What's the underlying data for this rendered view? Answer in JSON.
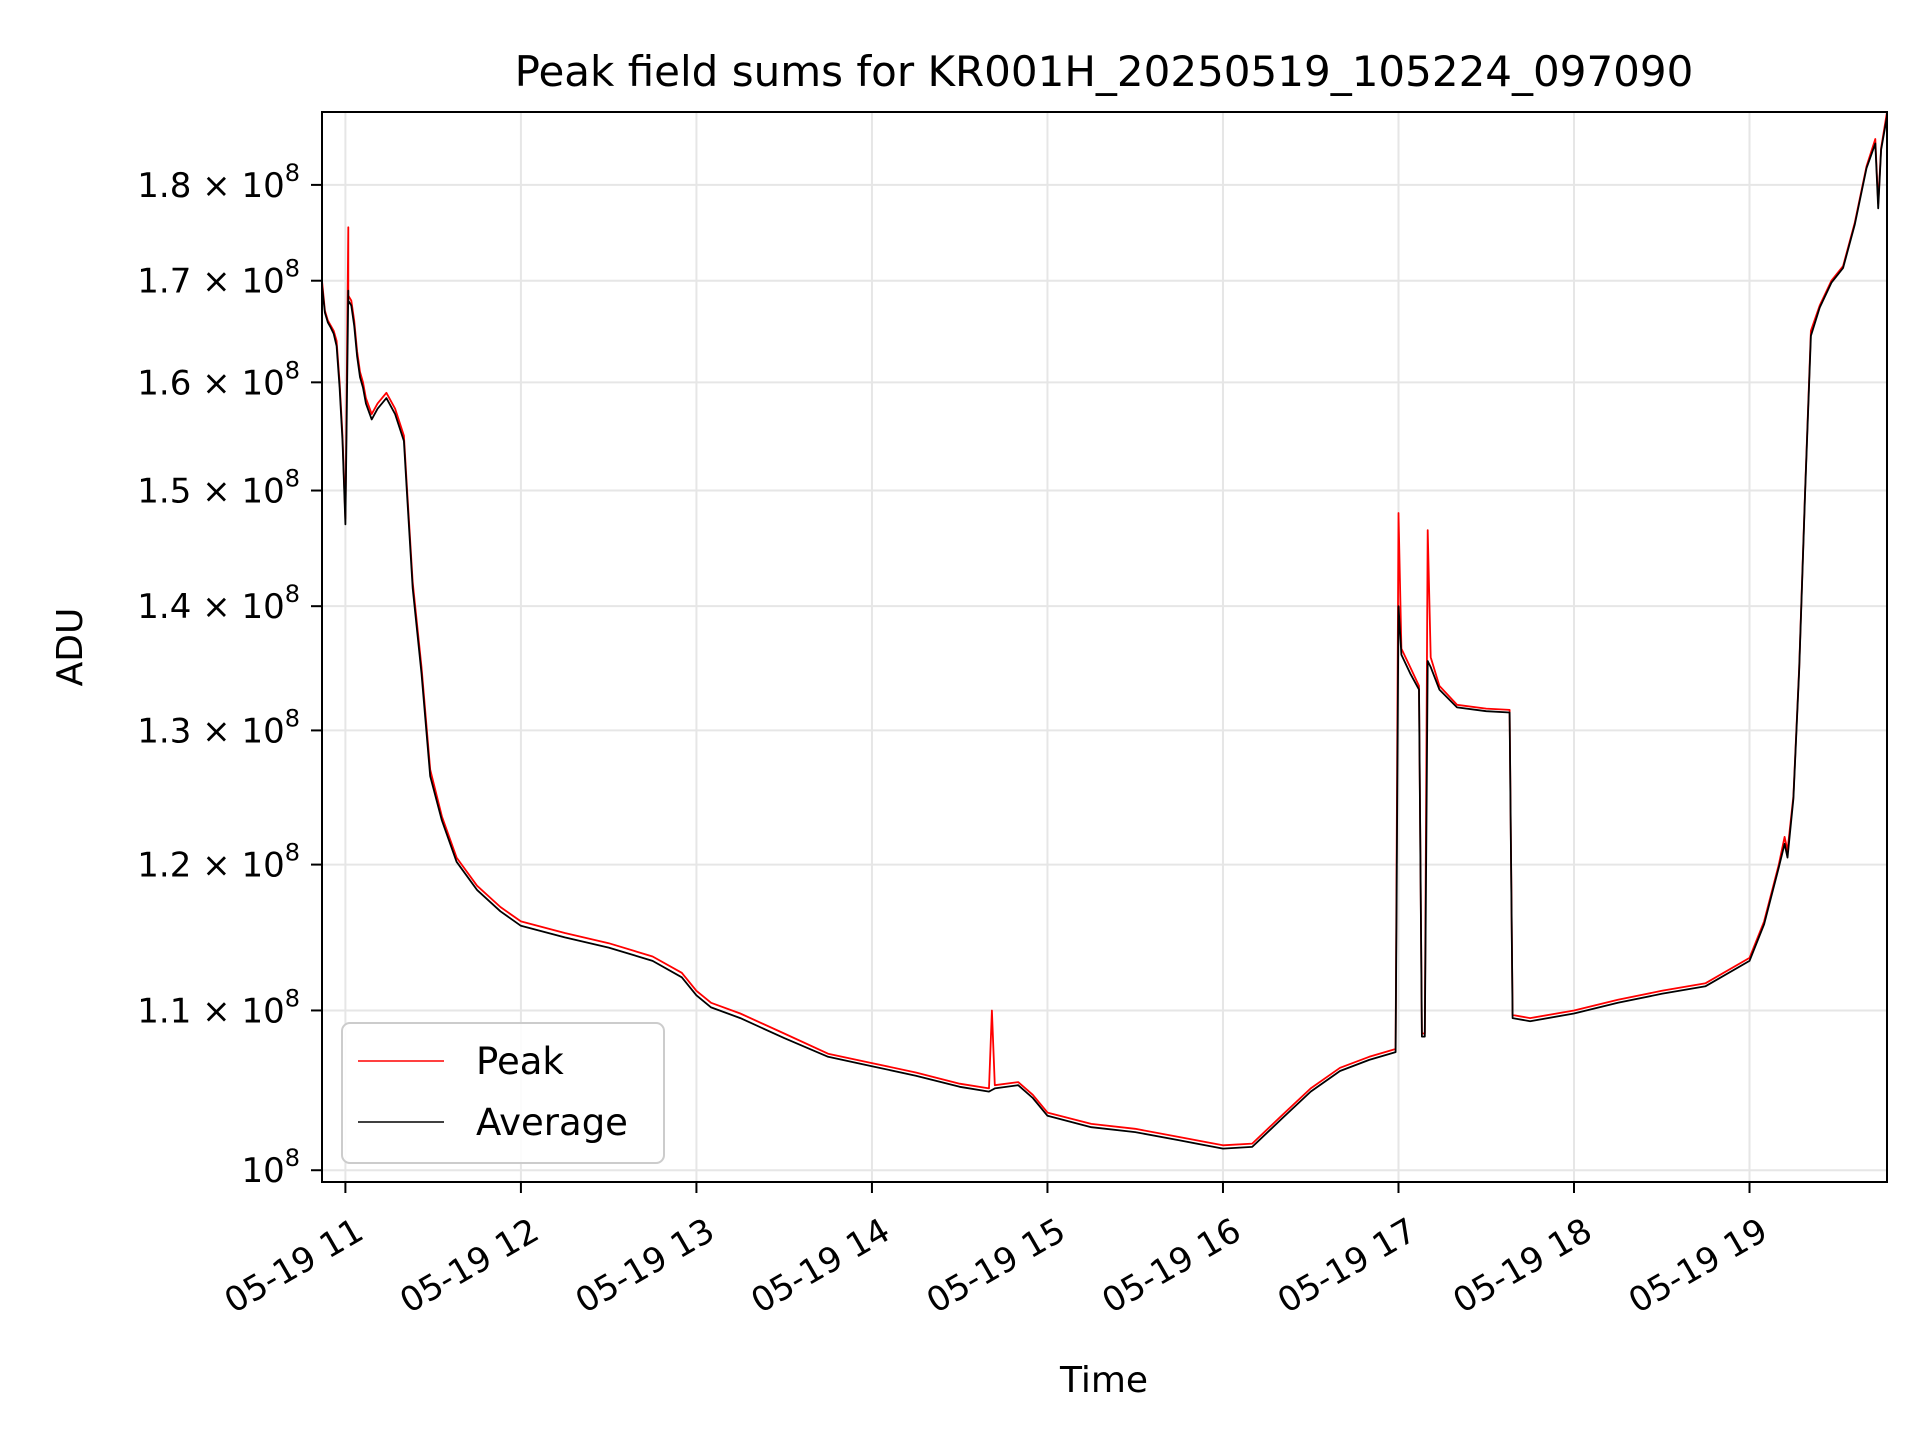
{
  "chart_data": {
    "type": "line",
    "title": "Peak field sums for KR001H_20250519_105224_097090",
    "xlabel": "Time",
    "ylabel": "ADU",
    "y_scale": "log",
    "grid": true,
    "legend_position": "lower-left",
    "xlim": [
      "2025-05-19 10:52",
      "2025-05-19 19:47"
    ],
    "ylim": [
      99300000,
      188000000
    ],
    "x_ticks": [
      {
        "value": "2025-05-19 11:00",
        "label": "05-19 11"
      },
      {
        "value": "2025-05-19 12:00",
        "label": "05-19 12"
      },
      {
        "value": "2025-05-19 13:00",
        "label": "05-19 13"
      },
      {
        "value": "2025-05-19 14:00",
        "label": "05-19 14"
      },
      {
        "value": "2025-05-19 15:00",
        "label": "05-19 15"
      },
      {
        "value": "2025-05-19 16:00",
        "label": "05-19 16"
      },
      {
        "value": "2025-05-19 17:00",
        "label": "05-19 17"
      },
      {
        "value": "2025-05-19 18:00",
        "label": "05-19 18"
      },
      {
        "value": "2025-05-19 19:00",
        "label": "05-19 19"
      }
    ],
    "y_ticks": [
      {
        "value": 100000000,
        "mant": "",
        "exp": "8"
      },
      {
        "value": 110000000,
        "mant": "1.1",
        "exp": "8"
      },
      {
        "value": 120000000,
        "mant": "1.2",
        "exp": "8"
      },
      {
        "value": 130000000,
        "mant": "1.3",
        "exp": "8"
      },
      {
        "value": 140000000,
        "mant": "1.4",
        "exp": "8"
      },
      {
        "value": 150000000,
        "mant": "1.5",
        "exp": "8"
      },
      {
        "value": 160000000,
        "mant": "1.6",
        "exp": "8"
      },
      {
        "value": 170000000,
        "mant": "1.7",
        "exp": "8"
      },
      {
        "value": 180000000,
        "mant": "1.8",
        "exp": "8"
      }
    ],
    "series": [
      {
        "name": "Peak",
        "color": "#ff0000",
        "points": [
          [
            "2025-05-19 10:52",
            170000000
          ],
          [
            "2025-05-19 10:53",
            167000000
          ],
          [
            "2025-05-19 10:54",
            166000000
          ],
          [
            "2025-05-19 10:55",
            165500000
          ],
          [
            "2025-05-19 10:56",
            165000000
          ],
          [
            "2025-05-19 10:57",
            164000000
          ],
          [
            "2025-05-19 10:58",
            160000000
          ],
          [
            "2025-05-19 10:59",
            155000000
          ],
          [
            "2025-05-19 11:00",
            147500000
          ],
          [
            "2025-05-19 11:01",
            175500000
          ],
          [
            "2025-05-19 11:01",
            168500000
          ],
          [
            "2025-05-19 11:02",
            168000000
          ],
          [
            "2025-05-19 11:03",
            166000000
          ],
          [
            "2025-05-19 11:04",
            163000000
          ],
          [
            "2025-05-19 11:05",
            161000000
          ],
          [
            "2025-05-19 11:06",
            160000000
          ],
          [
            "2025-05-19 11:07",
            158500000
          ],
          [
            "2025-05-19 11:09",
            157000000
          ],
          [
            "2025-05-19 11:11",
            158000000
          ],
          [
            "2025-05-19 11:14",
            159000000
          ],
          [
            "2025-05-19 11:17",
            157500000
          ],
          [
            "2025-05-19 11:20",
            155000000
          ],
          [
            "2025-05-19 11:21",
            150500000
          ],
          [
            "2025-05-19 11:23",
            142000000
          ],
          [
            "2025-05-19 11:26",
            135000000
          ],
          [
            "2025-05-19 11:29",
            127000000
          ],
          [
            "2025-05-19 11:33",
            123500000
          ],
          [
            "2025-05-19 11:38",
            120500000
          ],
          [
            "2025-05-19 11:45",
            118500000
          ],
          [
            "2025-05-19 11:53",
            117000000
          ],
          [
            "2025-05-19 12:00",
            116000000
          ],
          [
            "2025-05-19 12:15",
            115200000
          ],
          [
            "2025-05-19 12:30",
            114500000
          ],
          [
            "2025-05-19 12:45",
            113600000
          ],
          [
            "2025-05-19 12:55",
            112500000
          ],
          [
            "2025-05-19 13:00",
            111300000
          ],
          [
            "2025-05-19 13:05",
            110500000
          ],
          [
            "2025-05-19 13:15",
            109800000
          ],
          [
            "2025-05-19 13:30",
            108500000
          ],
          [
            "2025-05-19 13:45",
            107200000
          ],
          [
            "2025-05-19 14:00",
            106600000
          ],
          [
            "2025-05-19 14:15",
            106000000
          ],
          [
            "2025-05-19 14:30",
            105300000
          ],
          [
            "2025-05-19 14:40",
            105000000
          ],
          [
            "2025-05-19 14:41",
            110000000
          ],
          [
            "2025-05-19 14:42",
            105200000
          ],
          [
            "2025-05-19 14:50",
            105400000
          ],
          [
            "2025-05-19 14:55",
            104600000
          ],
          [
            "2025-05-19 15:00",
            103500000
          ],
          [
            "2025-05-19 15:15",
            102800000
          ],
          [
            "2025-05-19 15:30",
            102500000
          ],
          [
            "2025-05-19 15:45",
            102000000
          ],
          [
            "2025-05-19 16:00",
            101500000
          ],
          [
            "2025-05-19 16:10",
            101600000
          ],
          [
            "2025-05-19 16:20",
            103300000
          ],
          [
            "2025-05-19 16:30",
            105000000
          ],
          [
            "2025-05-19 16:40",
            106300000
          ],
          [
            "2025-05-19 16:50",
            107000000
          ],
          [
            "2025-05-19 16:59",
            107500000
          ],
          [
            "2025-05-19 17:00",
            148000000
          ],
          [
            "2025-05-19 17:01",
            136500000
          ],
          [
            "2025-05-19 17:04",
            135000000
          ],
          [
            "2025-05-19 17:07",
            133500000
          ],
          [
            "2025-05-19 17:08",
            108500000
          ],
          [
            "2025-05-19 17:09",
            108500000
          ],
          [
            "2025-05-19 17:10",
            146500000
          ],
          [
            "2025-05-19 17:11",
            135800000
          ],
          [
            "2025-05-19 17:14",
            133500000
          ],
          [
            "2025-05-19 17:20",
            132000000
          ],
          [
            "2025-05-19 17:30",
            131700000
          ],
          [
            "2025-05-19 17:38",
            131600000
          ],
          [
            "2025-05-19 17:39",
            109700000
          ],
          [
            "2025-05-19 17:45",
            109500000
          ],
          [
            "2025-05-19 18:00",
            110000000
          ],
          [
            "2025-05-19 18:15",
            110700000
          ],
          [
            "2025-05-19 18:30",
            111300000
          ],
          [
            "2025-05-19 18:45",
            111800000
          ],
          [
            "2025-05-19 19:00",
            113500000
          ],
          [
            "2025-05-19 19:05",
            116000000
          ],
          [
            "2025-05-19 19:10",
            120000000
          ],
          [
            "2025-05-19 19:12",
            122000000
          ],
          [
            "2025-05-19 19:13",
            121000000
          ],
          [
            "2025-05-19 19:15",
            125000000
          ],
          [
            "2025-05-19 19:17",
            135000000
          ],
          [
            "2025-05-19 19:19",
            150000000
          ],
          [
            "2025-05-19 19:21",
            165000000
          ],
          [
            "2025-05-19 19:24",
            167500000
          ],
          [
            "2025-05-19 19:28",
            170000000
          ],
          [
            "2025-05-19 19:32",
            171500000
          ],
          [
            "2025-05-19 19:36",
            176000000
          ],
          [
            "2025-05-19 19:40",
            182000000
          ],
          [
            "2025-05-19 19:43",
            185000000
          ],
          [
            "2025-05-19 19:44",
            178000000
          ],
          [
            "2025-05-19 19:45",
            184000000
          ],
          [
            "2025-05-19 19:47",
            188000000
          ]
        ]
      },
      {
        "name": "Average",
        "color": "#000000",
        "points": [
          [
            "2025-05-19 10:52",
            169500000
          ],
          [
            "2025-05-19 10:53",
            166800000
          ],
          [
            "2025-05-19 10:54",
            165800000
          ],
          [
            "2025-05-19 10:55",
            165300000
          ],
          [
            "2025-05-19 10:56",
            164700000
          ],
          [
            "2025-05-19 10:57",
            163500000
          ],
          [
            "2025-05-19 10:58",
            159500000
          ],
          [
            "2025-05-19 10:59",
            154500000
          ],
          [
            "2025-05-19 11:00",
            147000000
          ],
          [
            "2025-05-19 11:01",
            169000000
          ],
          [
            "2025-05-19 11:01",
            168000000
          ],
          [
            "2025-05-19 11:02",
            167500000
          ],
          [
            "2025-05-19 11:03",
            165500000
          ],
          [
            "2025-05-19 11:04",
            162500000
          ],
          [
            "2025-05-19 11:05",
            160500000
          ],
          [
            "2025-05-19 11:06",
            159500000
          ],
          [
            "2025-05-19 11:07",
            158000000
          ],
          [
            "2025-05-19 11:09",
            156500000
          ],
          [
            "2025-05-19 11:11",
            157500000
          ],
          [
            "2025-05-19 11:14",
            158500000
          ],
          [
            "2025-05-19 11:17",
            157000000
          ],
          [
            "2025-05-19 11:20",
            154500000
          ],
          [
            "2025-05-19 11:21",
            150000000
          ],
          [
            "2025-05-19 11:23",
            141500000
          ],
          [
            "2025-05-19 11:26",
            134500000
          ],
          [
            "2025-05-19 11:29",
            126500000
          ],
          [
            "2025-05-19 11:33",
            123200000
          ],
          [
            "2025-05-19 11:38",
            120200000
          ],
          [
            "2025-05-19 11:45",
            118200000
          ],
          [
            "2025-05-19 11:53",
            116700000
          ],
          [
            "2025-05-19 12:00",
            115700000
          ],
          [
            "2025-05-19 12:15",
            114900000
          ],
          [
            "2025-05-19 12:30",
            114200000
          ],
          [
            "2025-05-19 12:45",
            113300000
          ],
          [
            "2025-05-19 12:55",
            112200000
          ],
          [
            "2025-05-19 13:00",
            111000000
          ],
          [
            "2025-05-19 13:05",
            110200000
          ],
          [
            "2025-05-19 13:15",
            109500000
          ],
          [
            "2025-05-19 13:30",
            108200000
          ],
          [
            "2025-05-19 13:45",
            107000000
          ],
          [
            "2025-05-19 14:00",
            106400000
          ],
          [
            "2025-05-19 14:15",
            105800000
          ],
          [
            "2025-05-19 14:30",
            105100000
          ],
          [
            "2025-05-19 14:40",
            104800000
          ],
          [
            "2025-05-19 14:41",
            104900000
          ],
          [
            "2025-05-19 14:42",
            105000000
          ],
          [
            "2025-05-19 14:50",
            105200000
          ],
          [
            "2025-05-19 14:55",
            104400000
          ],
          [
            "2025-05-19 15:00",
            103300000
          ],
          [
            "2025-05-19 15:15",
            102600000
          ],
          [
            "2025-05-19 15:30",
            102300000
          ],
          [
            "2025-05-19 15:45",
            101800000
          ],
          [
            "2025-05-19 16:00",
            101300000
          ],
          [
            "2025-05-19 16:10",
            101400000
          ],
          [
            "2025-05-19 16:20",
            103100000
          ],
          [
            "2025-05-19 16:30",
            104800000
          ],
          [
            "2025-05-19 16:40",
            106100000
          ],
          [
            "2025-05-19 16:50",
            106800000
          ],
          [
            "2025-05-19 16:59",
            107300000
          ],
          [
            "2025-05-19 17:00",
            140000000
          ],
          [
            "2025-05-19 17:01",
            136000000
          ],
          [
            "2025-05-19 17:04",
            134500000
          ],
          [
            "2025-05-19 17:07",
            133200000
          ],
          [
            "2025-05-19 17:08",
            108300000
          ],
          [
            "2025-05-19 17:09",
            108300000
          ],
          [
            "2025-05-19 17:10",
            135500000
          ],
          [
            "2025-05-19 17:11",
            135000000
          ],
          [
            "2025-05-19 17:14",
            133200000
          ],
          [
            "2025-05-19 17:20",
            131800000
          ],
          [
            "2025-05-19 17:30",
            131500000
          ],
          [
            "2025-05-19 17:38",
            131400000
          ],
          [
            "2025-05-19 17:39",
            109500000
          ],
          [
            "2025-05-19 17:45",
            109300000
          ],
          [
            "2025-05-19 18:00",
            109800000
          ],
          [
            "2025-05-19 18:15",
            110500000
          ],
          [
            "2025-05-19 18:30",
            111100000
          ],
          [
            "2025-05-19 18:45",
            111600000
          ],
          [
            "2025-05-19 19:00",
            113300000
          ],
          [
            "2025-05-19 19:05",
            115800000
          ],
          [
            "2025-05-19 19:10",
            119800000
          ],
          [
            "2025-05-19 19:12",
            121500000
          ],
          [
            "2025-05-19 19:13",
            120500000
          ],
          [
            "2025-05-19 19:15",
            124800000
          ],
          [
            "2025-05-19 19:17",
            134800000
          ],
          [
            "2025-05-19 19:19",
            149800000
          ],
          [
            "2025-05-19 19:21",
            164500000
          ],
          [
            "2025-05-19 19:24",
            167300000
          ],
          [
            "2025-05-19 19:28",
            169800000
          ],
          [
            "2025-05-19 19:32",
            171300000
          ],
          [
            "2025-05-19 19:36",
            175800000
          ],
          [
            "2025-05-19 19:40",
            181800000
          ],
          [
            "2025-05-19 19:43",
            184500000
          ],
          [
            "2025-05-19 19:44",
            177500000
          ],
          [
            "2025-05-19 19:45",
            183800000
          ],
          [
            "2025-05-19 19:47",
            187500000
          ]
        ]
      }
    ]
  }
}
